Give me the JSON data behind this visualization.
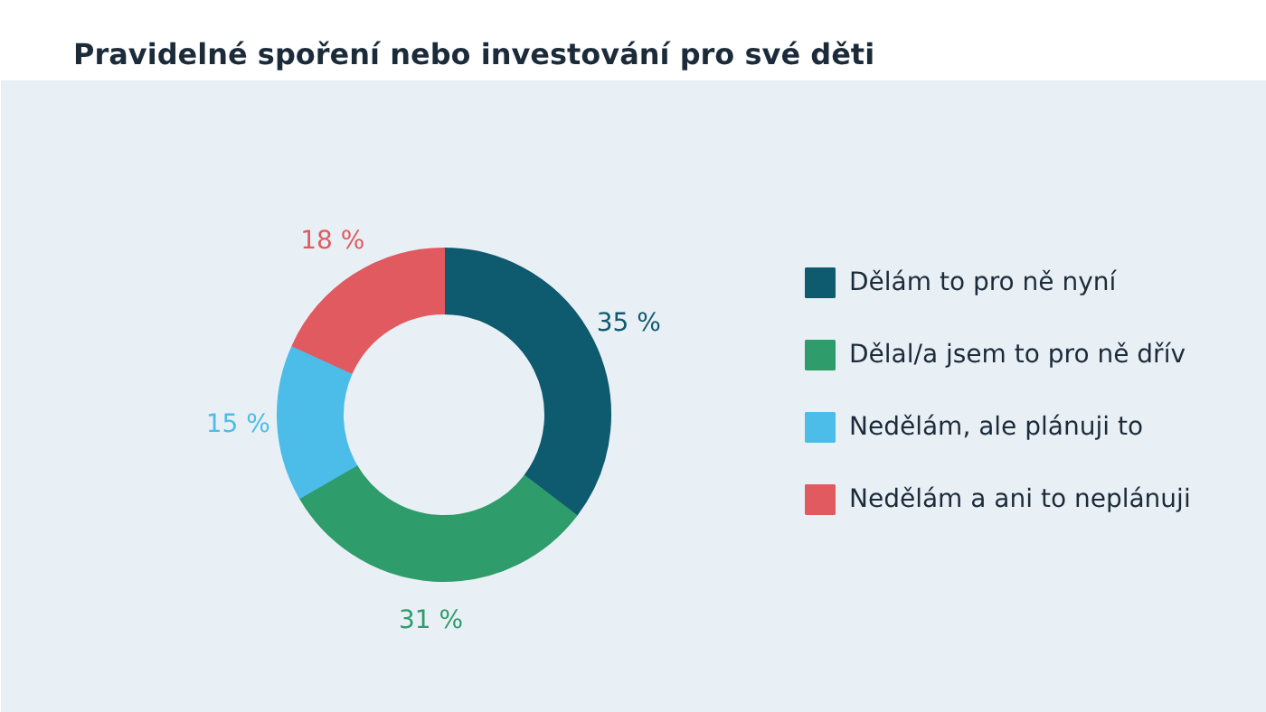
{
  "chart_data": {
    "type": "donut",
    "title": "Pravidelné spoření nebo investování pro své děti",
    "categories": [
      "Dělám to pro ně nyní",
      "Dělal/a jsem to pro ně dřív",
      "Nedělám, ale plánuji to",
      "Nedělám a ani to neplánuji"
    ],
    "values": [
      35,
      31,
      15,
      18
    ],
    "colors": [
      "#0e5a6e",
      "#2f9c6b",
      "#4cbde9",
      "#e05a60"
    ],
    "value_labels": [
      "35 %",
      "31 %",
      "15 %",
      "18 %"
    ],
    "legend": "right"
  }
}
